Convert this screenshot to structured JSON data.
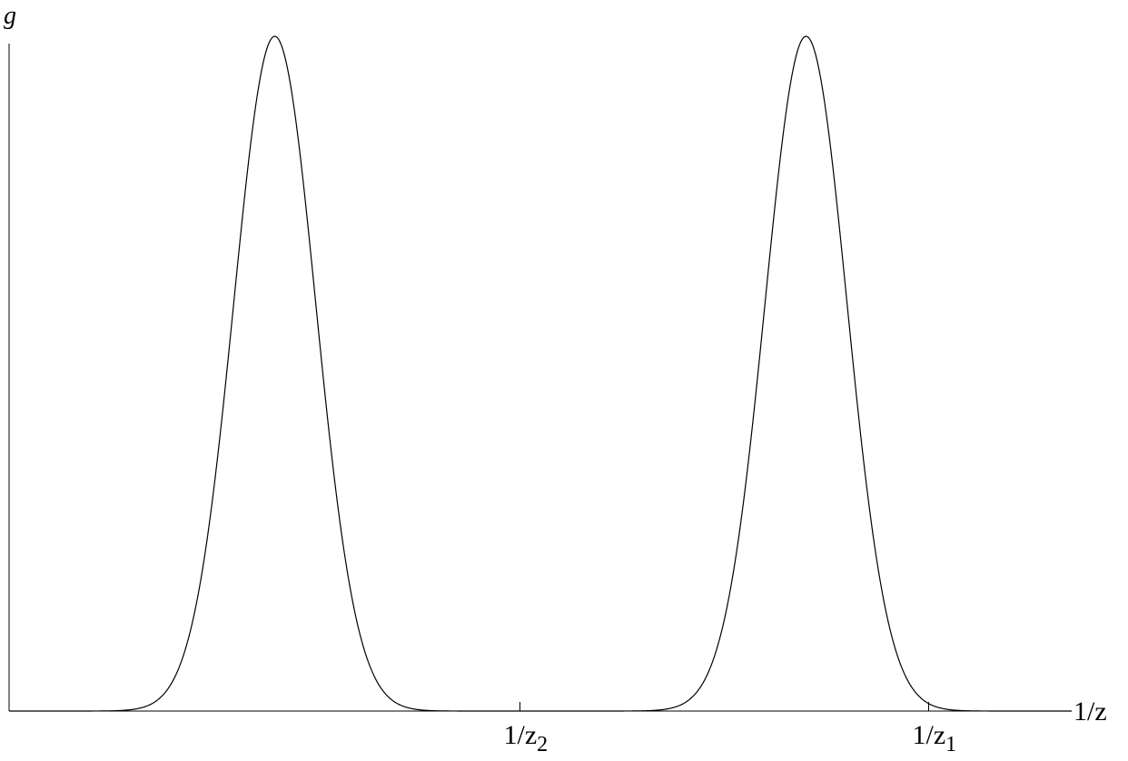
{
  "chart_data": {
    "type": "line",
    "title": "",
    "ylabel": "g",
    "xlabel": "1/z",
    "x_ticks": [
      {
        "value": 0.5,
        "label_main": "1/z",
        "label_sub": "2"
      },
      {
        "value": 0.9,
        "label_main": "1/z",
        "label_sub": "1"
      }
    ],
    "xlim": [
      0,
      1.04
    ],
    "ylim": [
      0,
      1
    ],
    "grid": false,
    "legend": "none",
    "series": [
      {
        "shape": "sum-of-two-bell-curves",
        "peaks": [
          {
            "center": 0.26,
            "height": 1.0,
            "width": 0.04
          },
          {
            "center": 0.78,
            "height": 1.0,
            "width": 0.04
          }
        ],
        "color": "#000000"
      }
    ]
  }
}
